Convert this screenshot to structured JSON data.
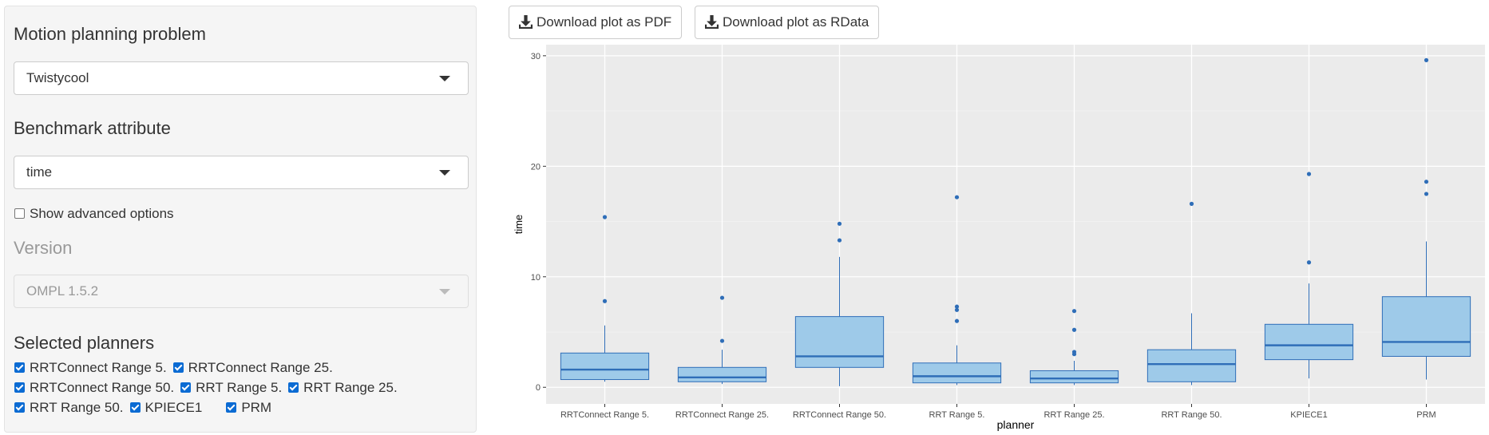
{
  "sidebar": {
    "problem_label": "Motion planning problem",
    "problem_value": "Twistycool",
    "attribute_label": "Benchmark attribute",
    "attribute_value": "time",
    "advanced_label": "Show advanced options",
    "advanced_checked": false,
    "version_label": "Version",
    "version_value": "OMPL 1.5.2",
    "planners_label": "Selected planners",
    "planners": [
      {
        "label": "RRTConnect Range 5.",
        "checked": true
      },
      {
        "label": "RRTConnect Range 25.",
        "checked": true
      },
      {
        "label": "RRTConnect Range 50.",
        "checked": true
      },
      {
        "label": "RRT Range 5.",
        "checked": true
      },
      {
        "label": "RRT Range 25.",
        "checked": true
      },
      {
        "label": "RRT Range 50.",
        "checked": true
      },
      {
        "label": "KPIECE1",
        "checked": true
      },
      {
        "label": "PRM",
        "checked": true
      }
    ]
  },
  "toolbar": {
    "pdf_label": "Download plot as PDF",
    "rdata_label": "Download plot as RData",
    "icon": "download-icon"
  },
  "colors": {
    "panel_bg": "#ebebeb",
    "box_fill": "#9ecae9",
    "box_stroke": "#2f6eb8",
    "checkbox": "#0b6bd3"
  },
  "chart_data": {
    "type": "boxplot",
    "xlabel": "planner",
    "ylabel": "time",
    "ylim": [
      -1.5,
      31
    ],
    "yticks": [
      0,
      10,
      20,
      30
    ],
    "grid": true,
    "categories": [
      "RRTConnect Range 5.",
      "RRTConnect Range 25.",
      "RRTConnect Range 50.",
      "RRT Range 5.",
      "RRT Range 25.",
      "RRT Range 50.",
      "KPIECE1",
      "PRM"
    ],
    "boxes": [
      {
        "lower_whisker": 0.5,
        "q1": 0.7,
        "median": 1.6,
        "q3": 3.1,
        "upper_whisker": 5.6,
        "outliers": [
          7.8,
          15.4
        ]
      },
      {
        "lower_whisker": 0.3,
        "q1": 0.5,
        "median": 0.9,
        "q3": 1.8,
        "upper_whisker": 3.4,
        "outliers": [
          4.2,
          8.1
        ]
      },
      {
        "lower_whisker": 0.1,
        "q1": 1.8,
        "median": 2.8,
        "q3": 6.4,
        "upper_whisker": 11.8,
        "outliers": [
          13.3,
          14.8
        ]
      },
      {
        "lower_whisker": 0.2,
        "q1": 0.4,
        "median": 1.0,
        "q3": 2.2,
        "upper_whisker": 3.8,
        "outliers": [
          6.0,
          7.0,
          7.3,
          17.2
        ]
      },
      {
        "lower_whisker": 0.2,
        "q1": 0.4,
        "median": 0.8,
        "q3": 1.5,
        "upper_whisker": 2.4,
        "outliers": [
          3.0,
          3.2,
          5.2,
          6.9
        ]
      },
      {
        "lower_whisker": 0.2,
        "q1": 0.5,
        "median": 2.1,
        "q3": 3.4,
        "upper_whisker": 6.7,
        "outliers": [
          16.6
        ]
      },
      {
        "lower_whisker": 0.8,
        "q1": 2.5,
        "median": 3.8,
        "q3": 5.7,
        "upper_whisker": 9.4,
        "outliers": [
          11.3,
          19.3
        ]
      },
      {
        "lower_whisker": 0.7,
        "q1": 2.8,
        "median": 4.1,
        "q3": 8.2,
        "upper_whisker": 13.2,
        "outliers": [
          17.5,
          18.6,
          29.6
        ]
      }
    ]
  }
}
